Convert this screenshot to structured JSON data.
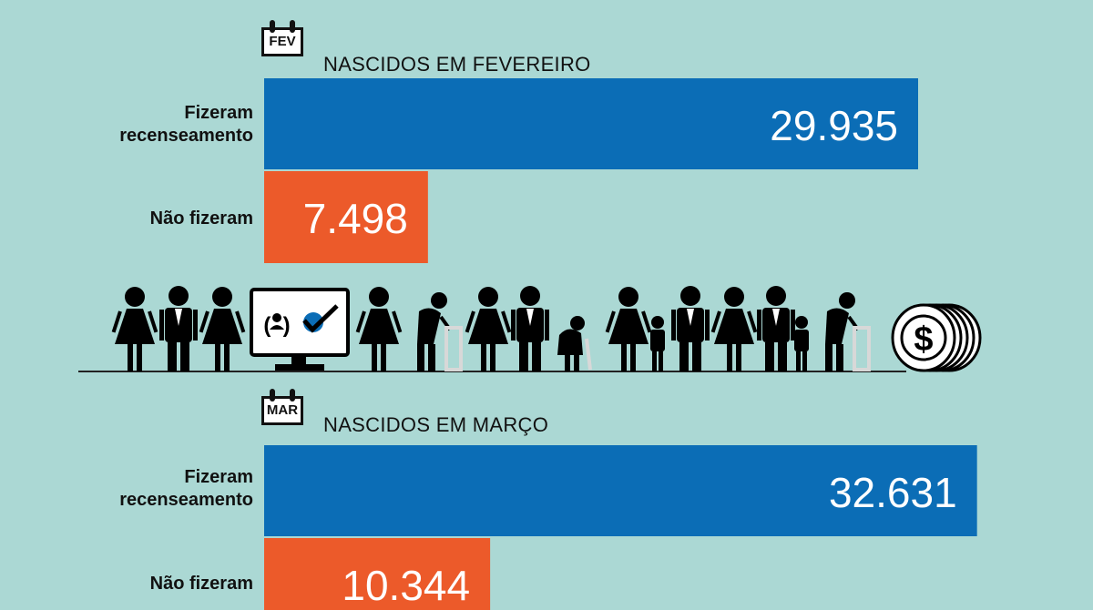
{
  "colors": {
    "background": "#abd8d4",
    "did_census": "#0b6db6",
    "did_not": "#ec5a2a"
  },
  "chart_data": [
    {
      "type": "bar",
      "orientation": "horizontal",
      "month_badge": "FEV",
      "title": "NASCIDOS EM FEVEREIRO",
      "categories": [
        [
          "Fizeram",
          "recenseamento"
        ],
        [
          "Não fizeram"
        ]
      ],
      "values": [
        29935,
        7498
      ],
      "value_labels": [
        "29.935",
        "7.498"
      ],
      "bar_colors": [
        "#0b6db6",
        "#ec5a2a"
      ],
      "xlim": [
        0,
        34000
      ]
    },
    {
      "type": "bar",
      "orientation": "horizontal",
      "month_badge": "MAR",
      "title": "NASCIDOS EM MARÇO",
      "categories": [
        [
          "Fizeram",
          "recenseamento"
        ],
        [
          "Não fizeram"
        ]
      ],
      "values": [
        32631,
        10344
      ],
      "value_labels": [
        "32.631",
        "10.344"
      ],
      "bar_colors": [
        "#0b6db6",
        "#ec5a2a"
      ],
      "xlim": [
        0,
        34000
      ]
    }
  ],
  "illustration": {
    "icons": [
      "woman-icon",
      "man-icon",
      "woman-icon",
      "computer-census-icon",
      "woman-icon",
      "elderly-walker-icon",
      "woman-icon",
      "man-icon",
      "elderly-woman-cane-icon",
      "woman-with-child-icon",
      "man-icon",
      "woman-icon",
      "man-with-child-icon",
      "elderly-walker-icon",
      "coin-stack-icon"
    ]
  }
}
